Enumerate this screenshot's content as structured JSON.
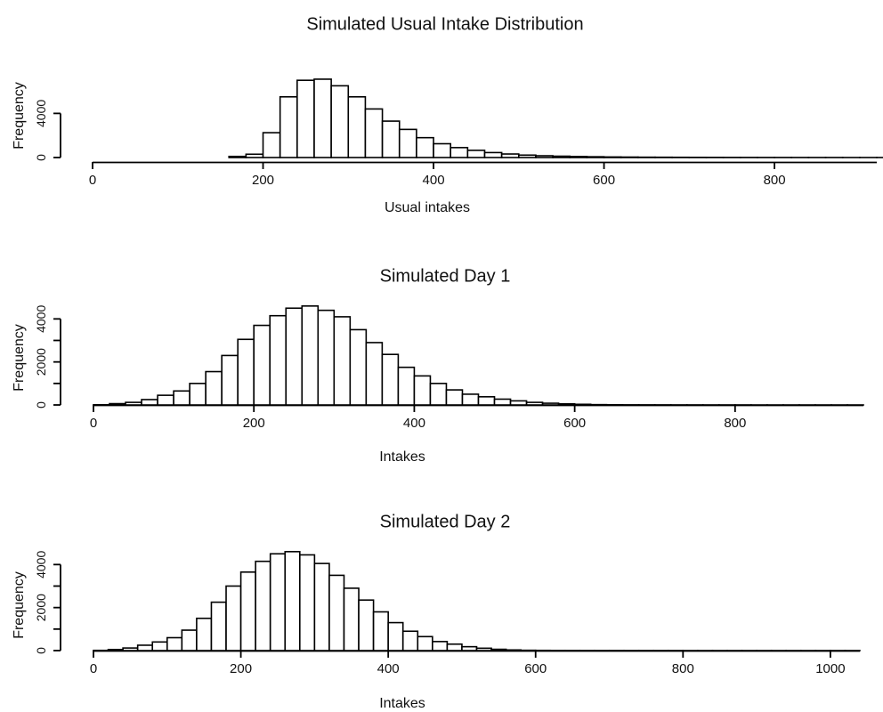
{
  "chart_data": [
    {
      "type": "bar",
      "title": "Simulated Usual Intake Distribution",
      "xlabel": "Usual intakes",
      "ylabel": "Frequency",
      "bin_width": 20,
      "bin_starts": [
        160,
        180,
        200,
        220,
        240,
        260,
        280,
        300,
        320,
        340,
        360,
        380,
        400,
        420,
        440,
        460,
        480,
        500,
        520,
        540,
        560,
        580,
        600,
        620,
        640,
        660,
        680,
        700,
        720,
        740,
        760,
        780,
        800,
        820,
        840,
        860,
        880,
        900,
        920
      ],
      "values": [
        100,
        300,
        2250,
        5500,
        7000,
        7100,
        6500,
        5500,
        4400,
        3300,
        2550,
        1800,
        1250,
        900,
        650,
        450,
        320,
        220,
        160,
        120,
        90,
        70,
        50,
        40,
        30,
        25,
        20,
        15,
        12,
        10,
        8,
        6,
        5,
        4,
        3,
        3,
        2,
        2,
        1
      ],
      "xlim": [
        0,
        920
      ],
      "ylim": [
        0,
        7500
      ],
      "xticks": [
        0,
        200,
        400,
        600,
        800
      ],
      "xtick_labels": [
        "0",
        "200",
        "400",
        "600",
        "800"
      ],
      "yticks": [
        0,
        4000
      ],
      "ytick_labels": [
        "0",
        "4000"
      ],
      "grid": false
    },
    {
      "type": "bar",
      "title": "Simulated Day 1",
      "xlabel": "Intakes",
      "ylabel": "Frequency",
      "bin_width": 20,
      "bin_starts": [
        0,
        20,
        40,
        60,
        80,
        100,
        120,
        140,
        160,
        180,
        200,
        220,
        240,
        260,
        280,
        300,
        320,
        340,
        360,
        380,
        400,
        420,
        440,
        460,
        480,
        500,
        520,
        540,
        560,
        580,
        600,
        620,
        640,
        660,
        680,
        700,
        720,
        740,
        760,
        780,
        800,
        820,
        840,
        860,
        880,
        900,
        920,
        940
      ],
      "values": [
        10,
        60,
        120,
        250,
        450,
        650,
        1000,
        1550,
        2300,
        3050,
        3700,
        4150,
        4500,
        4600,
        4400,
        4100,
        3500,
        2900,
        2350,
        1750,
        1350,
        1000,
        700,
        500,
        380,
        270,
        190,
        120,
        80,
        50,
        30,
        15,
        8,
        6,
        5,
        4,
        3,
        3,
        2,
        2,
        2,
        1,
        1,
        1,
        1,
        1,
        1,
        1
      ],
      "xlim": [
        0,
        960
      ],
      "ylim": [
        0,
        4800
      ],
      "xticks": [
        0,
        200,
        400,
        600,
        800
      ],
      "xtick_labels": [
        "0",
        "200",
        "400",
        "600",
        "800"
      ],
      "yticks": [
        0,
        1000,
        2000,
        3000,
        4000
      ],
      "ytick_labels": [
        "0",
        "",
        "2000",
        "",
        "4000"
      ],
      "grid": false
    },
    {
      "type": "bar",
      "title": "Simulated Day 2",
      "xlabel": "Intakes",
      "ylabel": "Frequency",
      "bin_width": 20,
      "bin_starts": [
        0,
        20,
        40,
        60,
        80,
        100,
        120,
        140,
        160,
        180,
        200,
        220,
        240,
        260,
        280,
        300,
        320,
        340,
        360,
        380,
        400,
        420,
        440,
        460,
        480,
        500,
        520,
        540,
        560,
        580,
        600,
        620,
        640,
        660,
        680,
        700,
        720,
        740,
        760,
        780,
        800,
        820,
        840,
        860,
        880,
        900,
        920,
        940,
        960,
        980,
        1000,
        1020
      ],
      "values": [
        10,
        50,
        120,
        250,
        400,
        600,
        950,
        1500,
        2250,
        3000,
        3650,
        4150,
        4500,
        4600,
        4450,
        4050,
        3500,
        2900,
        2350,
        1800,
        1300,
        900,
        650,
        420,
        300,
        180,
        110,
        60,
        30,
        15,
        10,
        6,
        5,
        4,
        3,
        3,
        2,
        2,
        2,
        2,
        1,
        1,
        1,
        1,
        1,
        1,
        1,
        1,
        1,
        1,
        1,
        1
      ],
      "xlim": [
        0,
        1040
      ],
      "ylim": [
        0,
        4800
      ],
      "xticks": [
        0,
        200,
        400,
        600,
        800,
        1000
      ],
      "xtick_labels": [
        "0",
        "200",
        "400",
        "600",
        "800",
        "1000"
      ],
      "yticks": [
        0,
        1000,
        2000,
        3000,
        4000
      ],
      "ytick_labels": [
        "0",
        "",
        "2000",
        "",
        "4000"
      ],
      "grid": false
    }
  ]
}
